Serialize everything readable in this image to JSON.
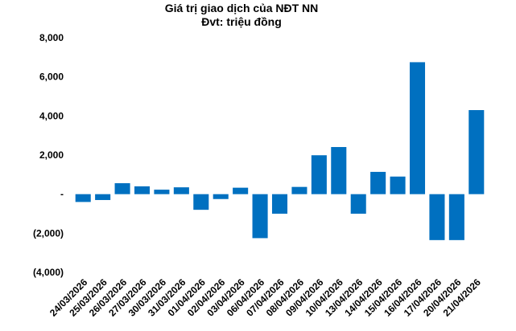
{
  "chart_data": {
    "type": "bar",
    "title": "Giá trị giao dịch của NĐT NN",
    "subtitle": "Đvt: triệu đồng",
    "xlabel": "",
    "ylabel": "",
    "ylim": [
      -4000,
      8000
    ],
    "grid": false,
    "legend": "none",
    "bar_color": "#0070C0",
    "y_ticks": [
      8000,
      6000,
      4000,
      2000,
      0,
      -2000,
      -4000
    ],
    "y_tick_labels": [
      "8,000",
      "6,000",
      "4,000",
      "2,000",
      "-",
      "(2,000)",
      "(4,000)"
    ],
    "categories": [
      "24/03/2026",
      "25/03/2026",
      "26/03/2026",
      "27/03/2026",
      "30/03/2026",
      "31/03/2026",
      "01/04/2026",
      "02/04/2026",
      "03/04/2026",
      "06/04/2026",
      "07/04/2026",
      "08/04/2026",
      "09/04/2026",
      "10/04/2026",
      "13/04/2026",
      "14/04/2026",
      "15/04/2026",
      "16/04/2026",
      "17/04/2026",
      "20/04/2026",
      "21/04/2026"
    ],
    "values": [
      -400,
      -300,
      560,
      400,
      230,
      350,
      -800,
      -250,
      330,
      -2250,
      -1000,
      370,
      1990,
      2410,
      -1000,
      1140,
      900,
      6750,
      -2350,
      -2350,
      4300
    ]
  }
}
